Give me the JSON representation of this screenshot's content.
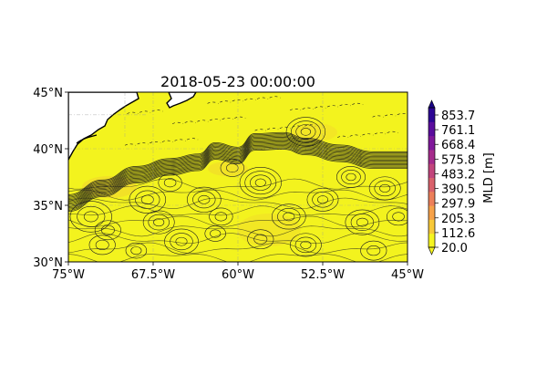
{
  "title": "2018-05-23 00:00:00",
  "map": {
    "lon_range": [
      -75,
      -45
    ],
    "lat_range": [
      30,
      45
    ],
    "lon_ticks": [
      -75,
      -67.5,
      -60,
      -52.5,
      -45
    ],
    "lon_tick_labels": [
      "75°W",
      "67.5°W",
      "60°W",
      "52.5°W",
      "45°W"
    ],
    "lat_ticks": [
      30,
      35,
      40,
      45
    ],
    "lat_tick_labels": [
      "30°N",
      "35°N",
      "40°N",
      "45°N"
    ],
    "background_color": "#f3f31e",
    "land_color": "#ffffff",
    "gulf_stream_path": [
      [
        -75,
        35.2
      ],
      [
        -72,
        36.5
      ],
      [
        -69,
        37.7
      ],
      [
        -66,
        38.4
      ],
      [
        -63.5,
        38.8
      ],
      [
        -62,
        39.8
      ],
      [
        -60,
        39.4
      ],
      [
        -58.5,
        40.6
      ],
      [
        -56,
        40.7
      ],
      [
        -54,
        40.2
      ],
      [
        -51,
        39.6
      ],
      [
        -48,
        39.0
      ],
      [
        -45,
        39.0
      ]
    ]
  },
  "colorbar": {
    "label": "MLD [m]",
    "ticks": [
      20.0,
      112.6,
      205.3,
      297.9,
      390.5,
      483.2,
      575.8,
      668.4,
      761.1,
      853.7
    ],
    "tick_labels": [
      "20.0",
      "112.6",
      "205.3",
      "297.9",
      "390.5",
      "483.2",
      "575.8",
      "668.4",
      "761.1",
      "853.7"
    ],
    "colors": [
      "#f6f51f",
      "#f8c938",
      "#f6a149",
      "#ec7f5a",
      "#d9616b",
      "#c2457c",
      "#a52b8c",
      "#80179b",
      "#5a0c9d",
      "#2c0594"
    ]
  }
}
